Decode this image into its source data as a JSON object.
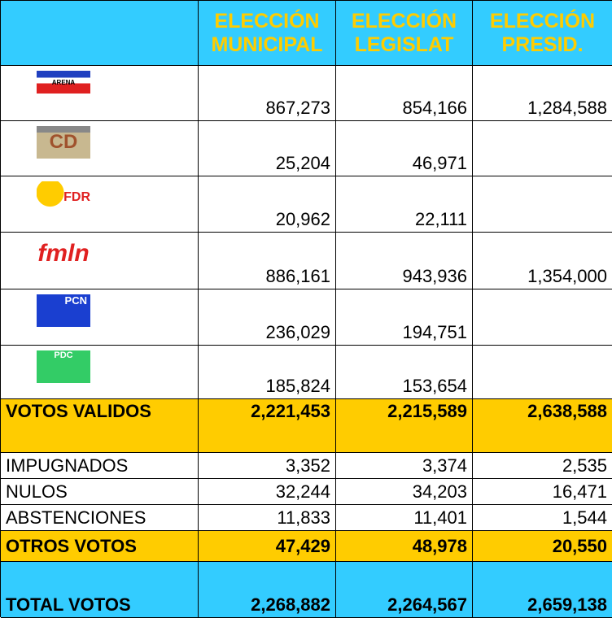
{
  "header": {
    "columns": [
      [
        "ELECCIÓN",
        "MUNICIPAL"
      ],
      [
        "ELECCIÓN",
        "LEGISLAT"
      ],
      [
        "ELECCIÓN",
        "PRESID."
      ]
    ]
  },
  "parties": [
    {
      "logo": "ARENA",
      "values": [
        "867,273",
        "854,166",
        "1,284,588"
      ]
    },
    {
      "logo": "CD",
      "values": [
        "25,204",
        "46,971"
      ]
    },
    {
      "logo": "FDR",
      "values": [
        "20,962",
        "22,111"
      ]
    },
    {
      "logo": "fmln",
      "values": [
        "886,161",
        "943,936",
        "1,354,000"
      ]
    },
    {
      "logo": "PCN",
      "values": [
        "236,029",
        "194,751"
      ]
    },
    {
      "logo": "PDC",
      "values": [
        "185,824",
        "153,654"
      ]
    }
  ],
  "votos_validos": {
    "label": "VOTOS VALIDOS",
    "values": [
      "2,221,453",
      "2,215,589",
      "2,638,588"
    ]
  },
  "details": [
    {
      "label": "IMPUGNADOS",
      "values": [
        "3,352",
        "3,374",
        "2,535"
      ]
    },
    {
      "label": "NULOS",
      "values": [
        "32,244",
        "34,203",
        "16,471"
      ]
    },
    {
      "label": "ABSTENCIONES",
      "values": [
        "11,833",
        "11,401",
        "1,544"
      ]
    }
  ],
  "otros_votos": {
    "label": "OTROS VOTOS",
    "values": [
      "47,429",
      "48,978",
      "20,550"
    ]
  },
  "total_votos": {
    "label": "TOTAL VOTOS",
    "values": [
      "2,268,882",
      "2,264,567",
      "2,659,138"
    ]
  }
}
